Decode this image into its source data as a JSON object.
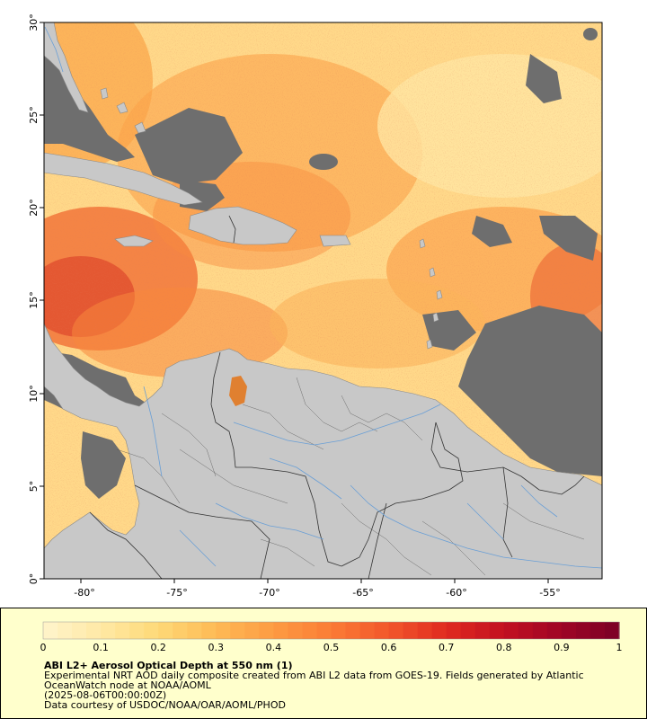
{
  "map": {
    "title": "ABI L2+ Aerosol Optical Depth at 550 nm (1)",
    "lat_ticks": [
      "30°",
      "25°",
      "20°",
      "15°",
      "10°",
      "5°",
      "0°"
    ],
    "lon_ticks": [
      "-80°",
      "-75°",
      "-70°",
      "-65°",
      "-60°",
      "-55°"
    ],
    "extent": {
      "lon": [
        -82,
        -52
      ],
      "lat": [
        0,
        30
      ]
    },
    "colors": {
      "land": "#c8c8c8",
      "no_data": "#6e6e6e",
      "border": "#333333",
      "river": "#6a9fd6",
      "ocean_background": "#ffd889"
    }
  },
  "colorbar": {
    "ticks": [
      "0",
      "0.1",
      "0.2",
      "0.3",
      "0.4",
      "0.5",
      "0.6",
      "0.7",
      "0.8",
      "0.9",
      "1"
    ],
    "range": [
      0,
      1
    ],
    "colors": [
      "#fff4cc",
      "#ffe9a5",
      "#fed977",
      "#feba55",
      "#fd9b43",
      "#fb7c35",
      "#f2562b",
      "#e02a20",
      "#c21021",
      "#9e0526",
      "#7a0026"
    ]
  },
  "info": {
    "title": "ABI L2+ Aerosol Optical Depth at 550 nm (1)",
    "description": "Experimental NRT AOD daily composite created from ABI L2 data from GOES-19. Fields generated by Atlantic OceanWatch node at NOAA/AOML",
    "date": "(2025-08-06T00:00:00Z)",
    "credit": "Data courtesy of USDOC/NOAA/OAR/AOML/PHOD"
  }
}
